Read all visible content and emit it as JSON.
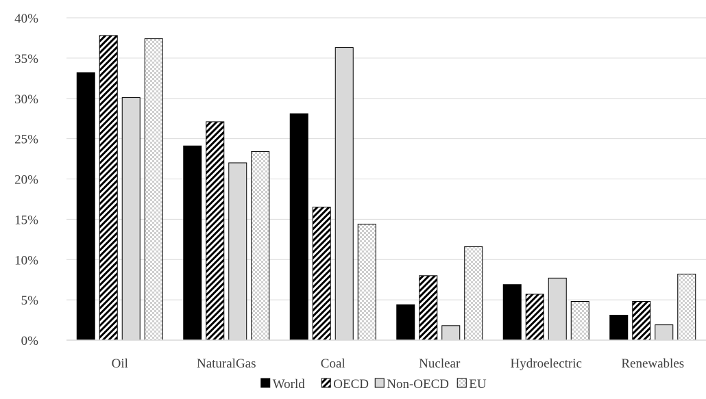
{
  "chart_data": {
    "type": "bar",
    "title": "",
    "xlabel": "",
    "ylabel": "",
    "categories": [
      "Oil",
      "NaturalGas",
      "Coal",
      "Nuclear",
      "Hydroelectric",
      "Renewables"
    ],
    "ylim": [
      0,
      40
    ],
    "ytick_step": 5,
    "y_tick_format": "percent",
    "grid": true,
    "legend_position": "bottom",
    "series": [
      {
        "name": "World",
        "fill": "solid",
        "color": "#000000",
        "values": [
          33.2,
          24.1,
          28.1,
          4.4,
          6.9,
          3.1
        ]
      },
      {
        "name": "OECD",
        "fill": "diagonal-hatch",
        "color": "#000000",
        "values": [
          37.8,
          27.1,
          16.5,
          8.0,
          5.7,
          4.8
        ]
      },
      {
        "name": "Non-OECD",
        "fill": "solid",
        "color": "#d9d9d9",
        "values": [
          30.1,
          22.0,
          36.3,
          1.8,
          7.7,
          1.9
        ]
      },
      {
        "name": "EU",
        "fill": "dotted",
        "color": "#d9d9d9",
        "values": [
          37.4,
          23.4,
          14.4,
          11.6,
          4.8,
          8.2
        ]
      }
    ]
  }
}
